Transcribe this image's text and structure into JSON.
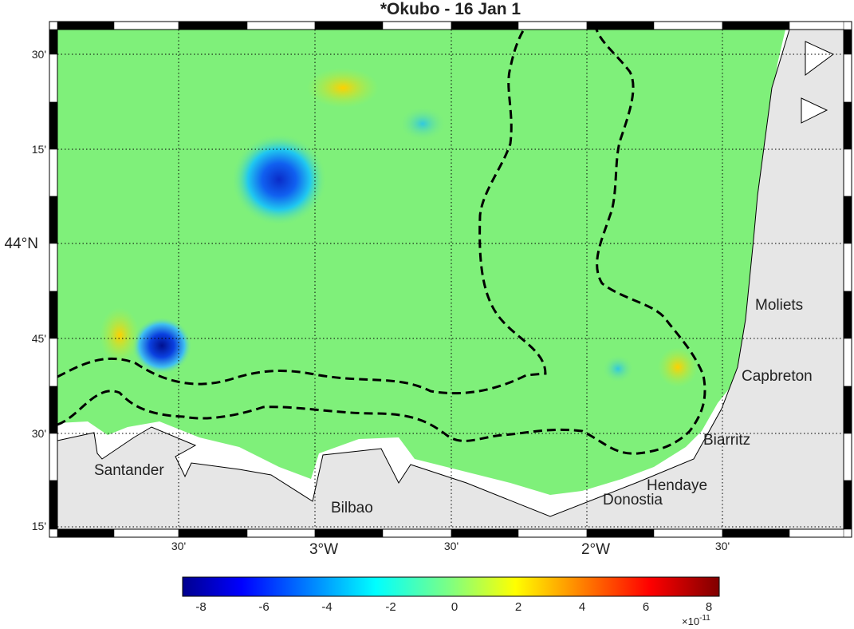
{
  "title": "*Okubo - 16 Jan 1",
  "map": {
    "lon_range": [
      -3.49,
      -1.45
    ],
    "lat_range": [
      43.24,
      43.73
    ],
    "grid": "dotted"
  },
  "y_ticks": [
    {
      "lat": 43.5,
      "label": "30'",
      "major": false
    },
    {
      "lat": 43.25,
      "label": "15'",
      "major": false
    },
    {
      "lat": 44.0,
      "label": "44°N",
      "major": true
    },
    {
      "lat": 43.75,
      "label": "45'",
      "major": false
    },
    {
      "lat": 43.5,
      "label": "30'",
      "major": false
    },
    {
      "lat": 43.25,
      "label": "15'",
      "major": false
    }
  ],
  "x_ticks": [
    {
      "label": "30'",
      "major": false
    },
    {
      "label": "3°W",
      "major": true
    },
    {
      "label": "30'",
      "major": false
    },
    {
      "label": "2°W",
      "major": true
    },
    {
      "label": "30'",
      "major": false
    }
  ],
  "places": [
    {
      "name": "Santander"
    },
    {
      "name": "Bilbao"
    },
    {
      "name": "Donostia"
    },
    {
      "name": "Hendaye"
    },
    {
      "name": "Biarritz"
    },
    {
      "name": "Capbreton"
    },
    {
      "name": "Moliets"
    }
  ],
  "colorbar": {
    "colormap": "jet",
    "min": -8.5,
    "max": 8.5,
    "ticks": [
      "-8",
      "-6",
      "-4",
      "-2",
      "0",
      "2",
      "4",
      "6",
      "8"
    ],
    "multiplier": "×10",
    "exponent": "-11"
  },
  "colors": {
    "land": "#e6e6e6",
    "background_field": "#7ff07a",
    "contour": "#000000"
  }
}
